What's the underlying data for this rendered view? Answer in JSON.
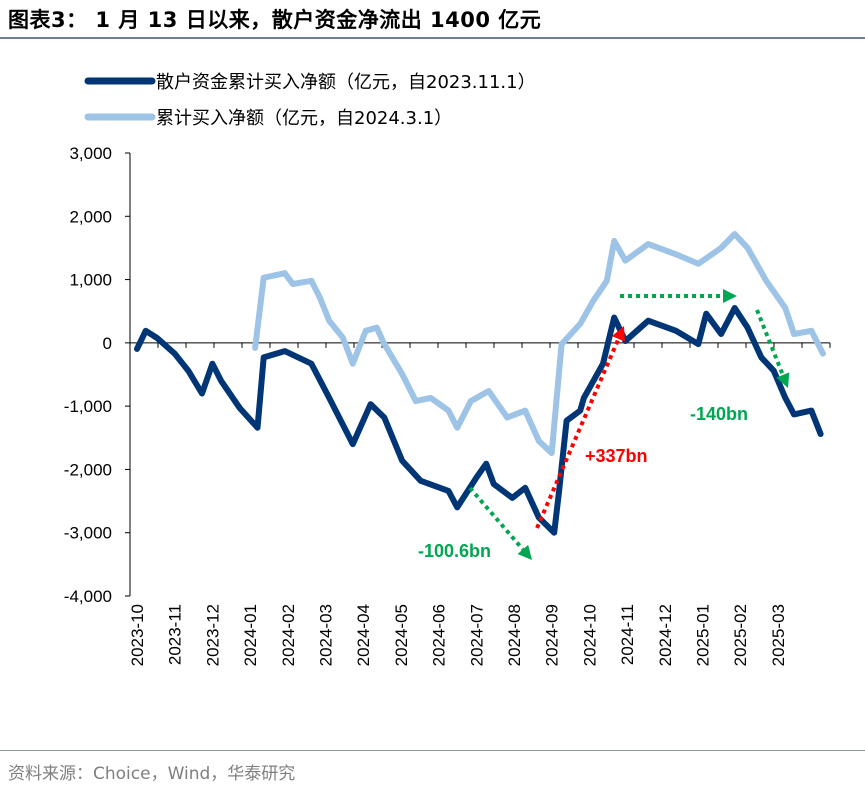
{
  "title": "图表3：  1 月 13 日以来，散户资金净流出 1400 亿元",
  "source": "资料来源：Choice，Wind，华泰研究",
  "colors": {
    "dark_series": "#003676",
    "light_series": "#9dc3e6",
    "green_annotation": "#00a651",
    "red_annotation": "#ff0000"
  },
  "chart_data": {
    "type": "line",
    "title": "",
    "xlabel": "",
    "ylabel": "",
    "ylim": [
      -4000,
      3000
    ],
    "yticks": [
      3000,
      2000,
      1000,
      0,
      -1000,
      -2000,
      -3000,
      -4000
    ],
    "ytick_labels": [
      "3,000",
      "2,000",
      "1,000",
      "0",
      "-1,000",
      "-2,000",
      "-3,000",
      "-4,000"
    ],
    "xtick_labels": [
      "2023-10",
      "2023-11",
      "2023-12",
      "2024-01",
      "2024-02",
      "2024-03",
      "2024-04",
      "2024-05",
      "2024-06",
      "2024-07",
      "2024-08",
      "2024-09",
      "2024-10",
      "2024-11",
      "2024-12",
      "2025-01",
      "2025-02",
      "2025-03"
    ],
    "grid": false,
    "legend_placement": "top-left",
    "series": [
      {
        "name": "散户资金累计买入净额（亿元，自2023.11.1）",
        "color": "#003676",
        "points": [
          [
            "2023-10-01",
            -95
          ],
          [
            "2023-10-08",
            190
          ],
          [
            "2023-10-17",
            80
          ],
          [
            "2023-11-01",
            -170
          ],
          [
            "2023-11-12",
            -440
          ],
          [
            "2023-11-23",
            -800
          ],
          [
            "2023-12-01",
            -330
          ],
          [
            "2023-12-08",
            -600
          ],
          [
            "2023-12-23",
            -1030
          ],
          [
            "2024-01-07",
            -1340
          ],
          [
            "2024-01-12",
            -230
          ],
          [
            "2024-01-29",
            -130
          ],
          [
            "2024-02-20",
            -330
          ],
          [
            "2024-03-04",
            -870
          ],
          [
            "2024-03-23",
            -1600
          ],
          [
            "2024-04-07",
            -970
          ],
          [
            "2024-04-18",
            -1180
          ],
          [
            "2024-05-02",
            -1860
          ],
          [
            "2024-05-17",
            -2180
          ],
          [
            "2024-06-09",
            -2340
          ],
          [
            "2024-06-16",
            -2600
          ],
          [
            "2024-07-01",
            -2130
          ],
          [
            "2024-07-09",
            -1910
          ],
          [
            "2024-07-15",
            -2230
          ],
          [
            "2024-07-30",
            -2450
          ],
          [
            "2024-08-10",
            -2290
          ],
          [
            "2024-08-21",
            -2760
          ],
          [
            "2024-09-03",
            -3000
          ],
          [
            "2024-09-07",
            -2340
          ],
          [
            "2024-09-13",
            -1230
          ],
          [
            "2024-09-24",
            -1070
          ],
          [
            "2024-09-27",
            -870
          ],
          [
            "2024-10-12",
            -330
          ],
          [
            "2024-10-21",
            400
          ],
          [
            "2024-10-30",
            30
          ],
          [
            "2024-11-18",
            350
          ],
          [
            "2024-12-10",
            190
          ],
          [
            "2024-12-28",
            -20
          ],
          [
            "2025-01-04",
            460
          ],
          [
            "2025-01-16",
            140
          ],
          [
            "2025-01-27",
            550
          ],
          [
            "2025-02-07",
            240
          ],
          [
            "2025-02-18",
            -230
          ],
          [
            "2025-02-28",
            -440
          ],
          [
            "2025-03-07",
            -870
          ],
          [
            "2025-03-14",
            -1130
          ],
          [
            "2025-03-28",
            -1070
          ],
          [
            "2025-04-05",
            -1440
          ]
        ]
      },
      {
        "name": "累计买入净额（亿元，自2024.3.1）",
        "color": "#9dc3e6",
        "points": [
          [
            "2024-01-05",
            -80
          ],
          [
            "2024-01-12",
            1030
          ],
          [
            "2024-01-29",
            1100
          ],
          [
            "2024-02-05",
            930
          ],
          [
            "2024-02-20",
            980
          ],
          [
            "2024-02-27",
            710
          ],
          [
            "2024-03-04",
            350
          ],
          [
            "2024-03-15",
            80
          ],
          [
            "2024-03-23",
            -330
          ],
          [
            "2024-04-03",
            190
          ],
          [
            "2024-04-12",
            240
          ],
          [
            "2024-04-18",
            -20
          ],
          [
            "2024-05-02",
            -490
          ],
          [
            "2024-05-13",
            -920
          ],
          [
            "2024-05-25",
            -870
          ],
          [
            "2024-06-09",
            -1070
          ],
          [
            "2024-06-16",
            -1340
          ],
          [
            "2024-06-27",
            -920
          ],
          [
            "2024-07-11",
            -760
          ],
          [
            "2024-07-26",
            -1180
          ],
          [
            "2024-08-10",
            -1070
          ],
          [
            "2024-08-21",
            -1550
          ],
          [
            "2024-09-01",
            -1740
          ],
          [
            "2024-09-09",
            -20
          ],
          [
            "2024-09-24",
            300
          ],
          [
            "2024-10-04",
            660
          ],
          [
            "2024-10-15",
            980
          ],
          [
            "2024-10-21",
            1610
          ],
          [
            "2024-10-30",
            1300
          ],
          [
            "2024-11-18",
            1560
          ],
          [
            "2024-12-10",
            1400
          ],
          [
            "2024-12-28",
            1250
          ],
          [
            "2025-01-16",
            1500
          ],
          [
            "2025-01-27",
            1720
          ],
          [
            "2025-02-07",
            1500
          ],
          [
            "2025-02-22",
            980
          ],
          [
            "2025-03-07",
            550
          ],
          [
            "2025-03-14",
            140
          ],
          [
            "2025-03-28",
            190
          ],
          [
            "2025-04-07",
            -170
          ]
        ]
      }
    ],
    "annotations": [
      {
        "text": "-100.6bn",
        "color": "#00a651"
      },
      {
        "text": "+337bn",
        "color": "#ff0000"
      },
      {
        "text": "",
        "color": "#00a651"
      },
      {
        "text": "-140bn",
        "color": "#00a651"
      }
    ]
  }
}
